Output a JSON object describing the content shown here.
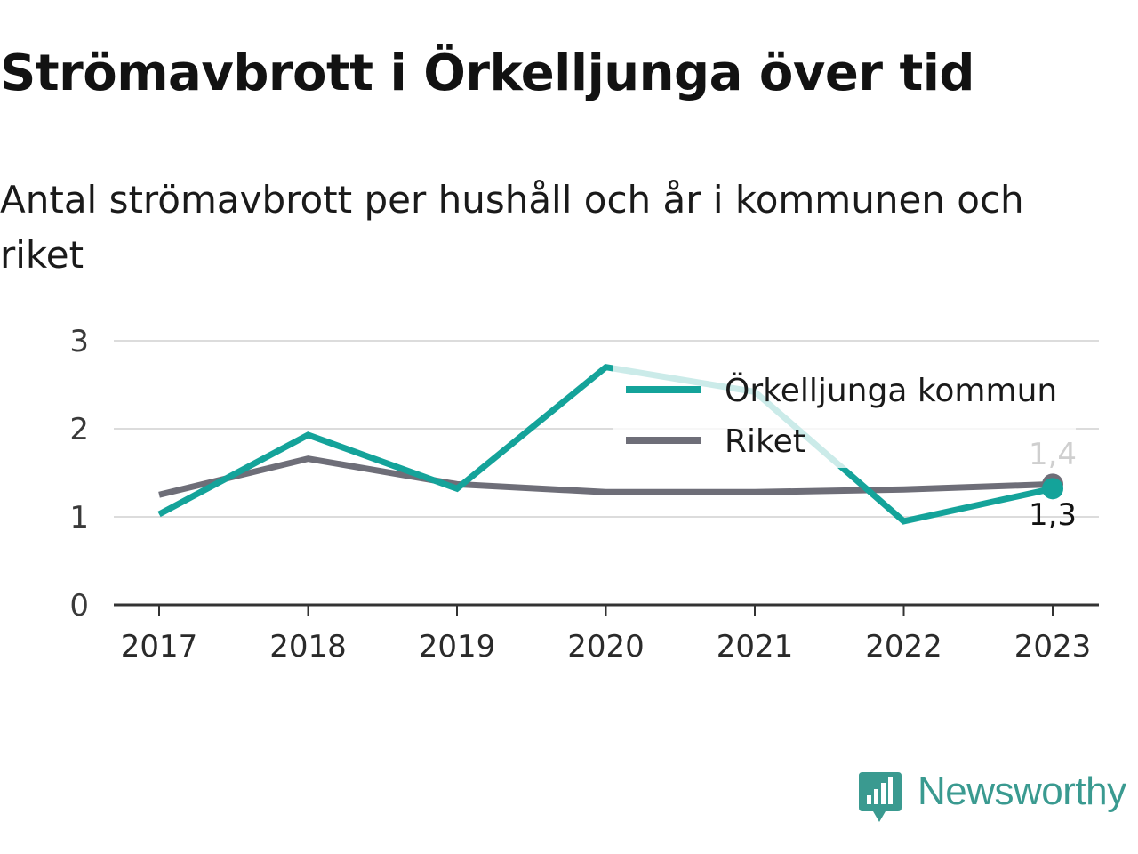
{
  "title": "Strömavbrott i Örkelljunga över tid",
  "subtitle": "Antal strömavbrott per hushåll och år i kommunen och riket",
  "brand": "Newsworthy",
  "colors": {
    "kommun": "#14a39a",
    "riket": "#6e6e78",
    "grid": "#dcdcdc",
    "axis": "#333333",
    "brand": "#3a9a90"
  },
  "chart_data": {
    "type": "line",
    "categories": [
      "2017",
      "2018",
      "2019",
      "2020",
      "2021",
      "2022",
      "2023"
    ],
    "ylim": [
      0,
      3
    ],
    "yticks": [
      "0",
      "1",
      "2",
      "3"
    ],
    "grid": true,
    "legend_position": "top-right",
    "series": [
      {
        "name": "Örkelljunga kommun",
        "values": [
          1.03,
          1.93,
          1.32,
          2.7,
          2.42,
          0.95,
          1.32
        ],
        "color": "#14a39a"
      },
      {
        "name": "Riket",
        "values": [
          1.25,
          1.66,
          1.37,
          1.28,
          1.28,
          1.31,
          1.37
        ],
        "color": "#6e6e78"
      }
    ],
    "end_labels": {
      "kommun": "1,3",
      "riket": "1,4"
    }
  }
}
